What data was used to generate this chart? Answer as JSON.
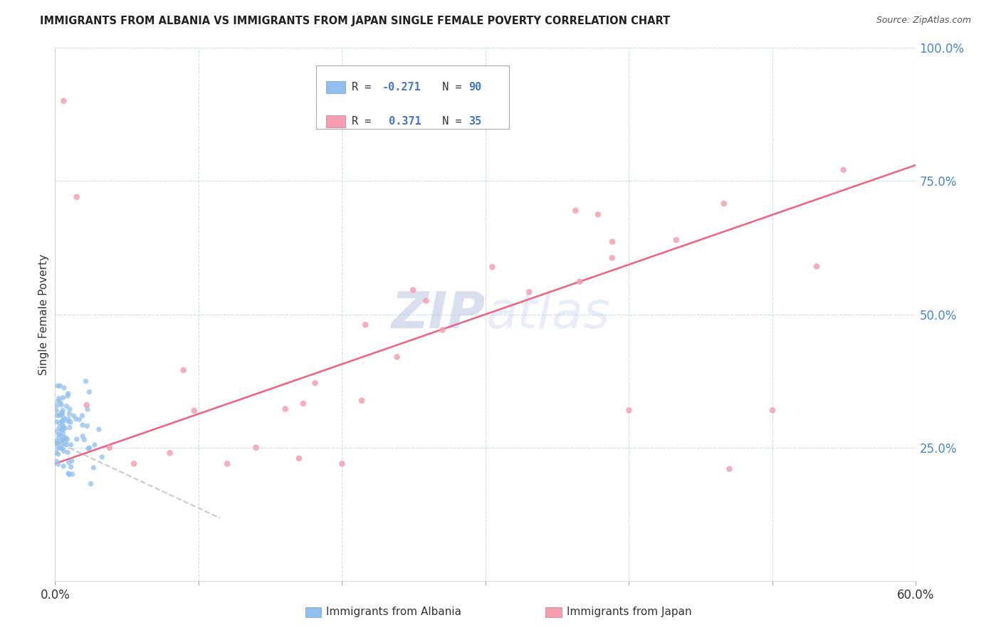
{
  "title": "IMMIGRANTS FROM ALBANIA VS IMMIGRANTS FROM JAPAN SINGLE FEMALE POVERTY CORRELATION CHART",
  "source": "Source: ZipAtlas.com",
  "ylabel": "Single Female Poverty",
  "legend_label1": "Immigrants from Albania",
  "legend_label2": "Immigrants from Japan",
  "r1": -0.271,
  "n1": 90,
  "r2": 0.371,
  "n2": 35,
  "color_albania": "#92BFED",
  "color_japan": "#F4A0B0",
  "trendline_albania_color": "#C8C8D8",
  "trendline_japan_color": "#F06080",
  "watermark_zip": "ZIP",
  "watermark_atlas": "atlas",
  "xlim": [
    0.0,
    0.6
  ],
  "ylim": [
    0.0,
    1.0
  ],
  "ytick_positions": [
    0.0,
    0.25,
    0.5,
    0.75,
    1.0
  ],
  "ytick_labels": [
    "",
    "25.0%",
    "50.0%",
    "75.0%",
    "100.0%"
  ],
  "xtick_positions": [
    0.0,
    0.1,
    0.2,
    0.3,
    0.4,
    0.5,
    0.6
  ],
  "xtick_labels_show": [
    "0.0%",
    "",
    "",
    "",
    "",
    "",
    "60.0%"
  ],
  "grid_color": "#DDEEFF",
  "grid_linestyle": "--",
  "yaxis_tick_color": "#4488CC",
  "background_color": "#FFFFFF"
}
